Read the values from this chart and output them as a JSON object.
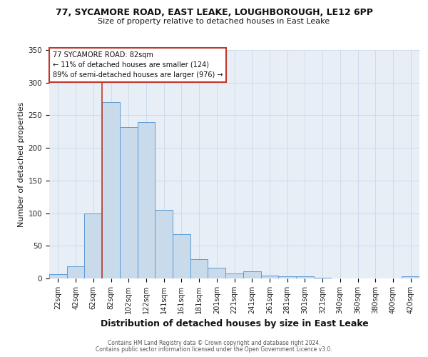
{
  "title1": "77, SYCAMORE ROAD, EAST LEAKE, LOUGHBOROUGH, LE12 6PP",
  "title2": "Size of property relative to detached houses in East Leake",
  "xlabel": "Distribution of detached houses by size in East Leake",
  "ylabel": "Number of detached properties",
  "bar_labels": [
    "22sqm",
    "42sqm",
    "62sqm",
    "82sqm",
    "102sqm",
    "122sqm",
    "141sqm",
    "161sqm",
    "181sqm",
    "201sqm",
    "221sqm",
    "241sqm",
    "261sqm",
    "281sqm",
    "301sqm",
    "321sqm",
    "340sqm",
    "360sqm",
    "380sqm",
    "400sqm",
    "420sqm"
  ],
  "bar_heights": [
    7,
    19,
    100,
    270,
    232,
    240,
    105,
    68,
    30,
    16,
    8,
    11,
    4,
    3,
    3,
    1,
    0,
    0,
    0,
    0,
    3
  ],
  "bar_color": "#c9daea",
  "bar_edge_color": "#5b9bd5",
  "highlight_bar_index": 3,
  "vline_color": "#c0392b",
  "annotation_line1": "77 SYCAMORE ROAD: 82sqm",
  "annotation_line2": "← 11% of detached houses are smaller (124)",
  "annotation_line3": "89% of semi-detached houses are larger (976) →",
  "annotation_box_color": "#ffffff",
  "annotation_box_edge": "#c0392b",
  "grid_color": "#c8d8e8",
  "bg_color": "#e8eef6",
  "footer1": "Contains HM Land Registry data © Crown copyright and database right 2024.",
  "footer2": "Contains public sector information licensed under the Open Government Licence v3.0.",
  "ylim": [
    0,
    350
  ],
  "yticks": [
    0,
    50,
    100,
    150,
    200,
    250,
    300,
    350
  ],
  "title1_fontsize": 9,
  "title2_fontsize": 8,
  "ylabel_fontsize": 8,
  "xlabel_fontsize": 9,
  "tick_fontsize": 7,
  "annotation_fontsize": 7,
  "footer_fontsize": 5.5
}
